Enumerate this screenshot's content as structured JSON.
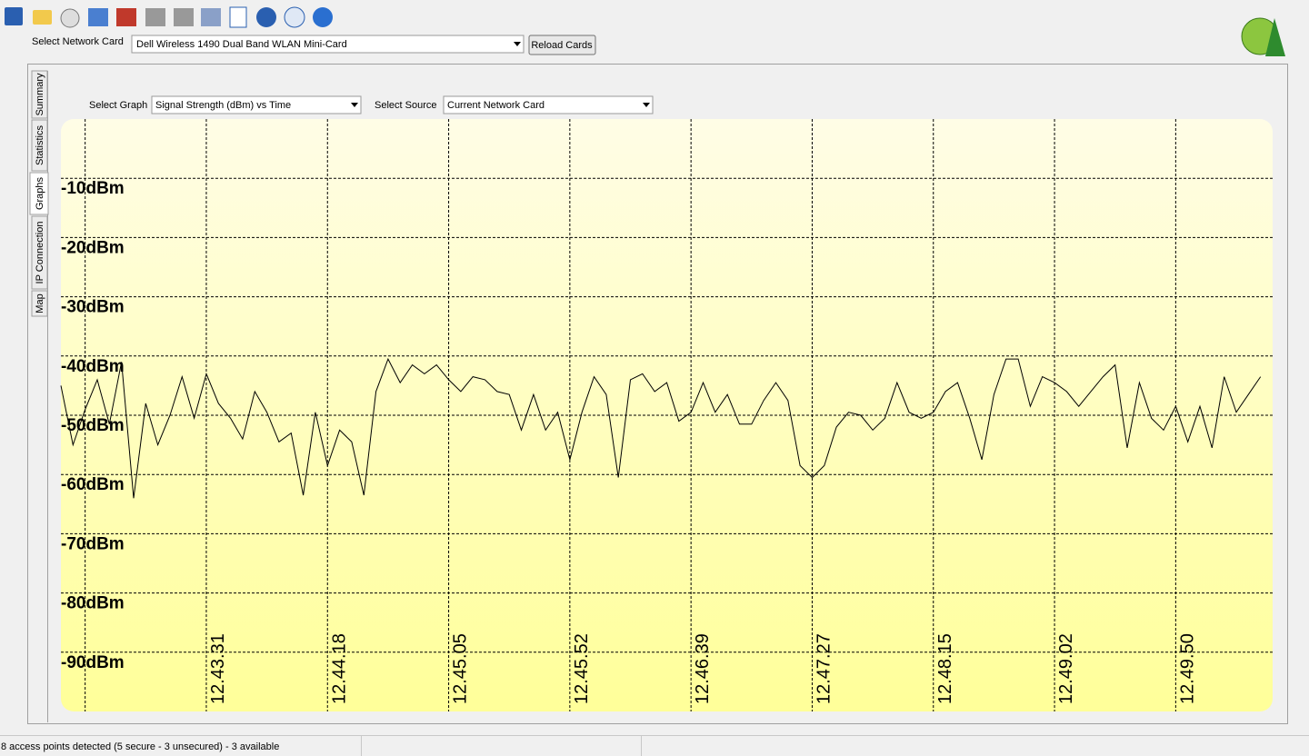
{
  "network": {
    "label": "Select Network Card",
    "selected": "Dell Wireless 1490 Dual Band WLAN Mini-Card",
    "button": "Reload Cards"
  },
  "tabs": [
    "Summary",
    "Statistics",
    "Graphs",
    "IP Connection",
    "Map"
  ],
  "graph_controls": {
    "graph_label": "Select Graph",
    "graph_selected": "Signal Strength (dBm) vs Time",
    "source_label": "Select Source",
    "source_selected": "Current Network Card"
  },
  "status_bar": {
    "text": "8 access points detected (5 secure - 3 unsecured) - 3 available"
  },
  "chart_data": {
    "type": "line",
    "color": "#000000",
    "grid": true,
    "values": [
      -45,
      -55,
      -49,
      -44,
      -51.5,
      -41,
      -64,
      -48,
      -55,
      -50,
      -43.5,
      -50.5,
      -43,
      -48,
      -50.5,
      -54,
      -46,
      -49.5,
      -54.5,
      -53,
      -63.5,
      -49.5,
      -58.5,
      -52.5,
      -54.5,
      -63.5,
      -46,
      -40.5,
      -44.5,
      -41.5,
      -43,
      -41.5,
      -44,
      -46,
      -43.5,
      -44,
      -46,
      -46.5,
      -52.5,
      -46.5,
      -52.5,
      -49.5,
      -57.5,
      -49.5,
      -43.5,
      -46.5,
      -60.5,
      -44,
      -43,
      -46,
      -44.5,
      -51,
      -49.5,
      -44.5,
      -49.5,
      -46.5,
      -51.5,
      -51.5,
      -47.5,
      -44.5,
      -47.5,
      -58.5,
      -60.5,
      -58.5,
      -52,
      -49.5,
      -50,
      -52.5,
      -50.5,
      -44.5,
      -49.5,
      -50.5,
      -49.5,
      -46,
      -44.5,
      -50.5,
      -57.5,
      -46.5,
      -40.5,
      -40.5,
      -48.5,
      -43.5,
      -44.5,
      -46,
      -48.5,
      -46,
      -43.5,
      -41.5,
      -55.5,
      -44.5,
      -50.5,
      -52.5,
      -48.5,
      -54.5,
      -48.5,
      -55.5,
      -43.5,
      -49.5,
      -46.5,
      -43.5
    ],
    "xlim": [
      0,
      100
    ],
    "xticks": [
      {
        "value": 2,
        "label": null
      },
      {
        "value": 12,
        "label": "12.43.31"
      },
      {
        "value": 22,
        "label": "12.44.18"
      },
      {
        "value": 32,
        "label": "12.45.05"
      },
      {
        "value": 42,
        "label": "12.45.52"
      },
      {
        "value": 52,
        "label": "12.46.39"
      },
      {
        "value": 62,
        "label": "12.47.27"
      },
      {
        "value": 72,
        "label": "12.48.15"
      },
      {
        "value": 82,
        "label": "12.49.02"
      },
      {
        "value": 92,
        "label": "12.49.50"
      }
    ],
    "ylim": [
      -100,
      0
    ],
    "yticks": [
      {
        "value": -10,
        "label": "-10dBm"
      },
      {
        "value": -20,
        "label": "-20dBm"
      },
      {
        "value": -30,
        "label": "-30dBm"
      },
      {
        "value": -40,
        "label": "-40dBm"
      },
      {
        "value": -50,
        "label": "-50dBm"
      },
      {
        "value": -60,
        "label": "-60dBm"
      },
      {
        "value": -70,
        "label": "-70dBm"
      },
      {
        "value": -80,
        "label": "-80dBm"
      },
      {
        "value": -90,
        "label": "-90dBm"
      }
    ]
  }
}
